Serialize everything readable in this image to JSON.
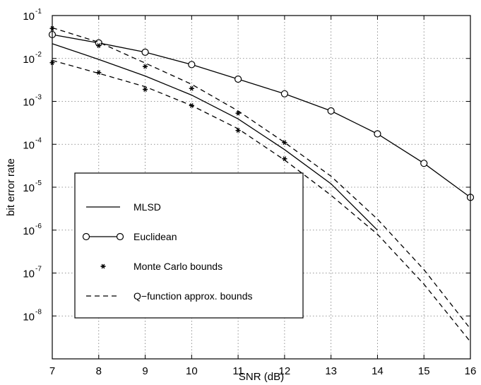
{
  "chart_data": {
    "type": "line",
    "xlabel": "SNR (dB)",
    "ylabel": "bit error rate",
    "x_scale": "linear",
    "y_scale": "log",
    "xlim": [
      7,
      16
    ],
    "ylim": [
      1e-09,
      0.1
    ],
    "x_ticks": [
      "7",
      "8",
      "9",
      "10",
      "11",
      "12",
      "13",
      "14",
      "15",
      "16"
    ],
    "y_ticks": [
      {
        "base": "10",
        "exp": "-1",
        "value": 0.1
      },
      {
        "base": "10",
        "exp": "-2",
        "value": 0.01
      },
      {
        "base": "10",
        "exp": "-3",
        "value": 0.001
      },
      {
        "base": "10",
        "exp": "-4",
        "value": 0.0001
      },
      {
        "base": "10",
        "exp": "-5",
        "value": 1e-05
      },
      {
        "base": "10",
        "exp": "-6",
        "value": 1e-06
      },
      {
        "base": "10",
        "exp": "-7",
        "value": 1e-07
      },
      {
        "base": "10",
        "exp": "-8",
        "value": 1e-08
      }
    ],
    "grid": true,
    "legend_position": "bottom-left",
    "series": [
      {
        "name": "MLSD",
        "style": "solid",
        "marker": "none",
        "x": [
          7,
          8,
          9,
          10,
          11,
          12,
          13,
          14
        ],
        "y": [
          0.022,
          0.0095,
          0.0039,
          0.0014,
          0.00039,
          7.5e-05,
          1.2e-05,
          1e-06
        ]
      },
      {
        "name": "Euclidean",
        "style": "solid",
        "marker": "circle",
        "x": [
          7,
          8,
          9,
          10,
          11,
          12,
          13,
          14,
          15,
          16
        ],
        "y": [
          0.036,
          0.023,
          0.014,
          0.0072,
          0.0033,
          0.0015,
          0.0006,
          0.000175,
          3.6e-05,
          5.8e-06
        ]
      },
      {
        "name": "Monte Carlo bounds",
        "style": "none",
        "marker": "asterisk",
        "x": [
          7,
          8,
          9,
          10,
          11,
          12,
          7,
          8,
          9,
          10,
          11,
          12
        ],
        "y": [
          0.05,
          0.02,
          0.0065,
          0.002,
          0.00053,
          0.00011,
          0.008,
          0.0047,
          0.0019,
          0.0008,
          0.00021,
          4.6e-05
        ]
      },
      {
        "name": "Q−function approx. bounds",
        "style": "dashed",
        "marker": "none",
        "x": [
          7,
          8,
          9,
          10,
          11,
          12,
          13,
          14,
          15,
          16
        ],
        "y": [
          0.052,
          0.024,
          0.0078,
          0.0025,
          0.0006,
          0.00011,
          1.8e-05,
          1.8e-06,
          1.2e-07,
          5e-09
        ]
      },
      {
        "name": "",
        "style": "dashed",
        "marker": "none",
        "x": [
          7,
          8,
          9,
          10,
          11,
          12,
          13,
          14,
          15,
          16
        ],
        "y": [
          0.009,
          0.0045,
          0.0022,
          0.0008,
          0.00023,
          4.3e-05,
          6.5e-06,
          8e-07,
          5.5e-08,
          2.5e-09
        ]
      }
    ],
    "legend": [
      {
        "label": "MLSD",
        "style": "solid",
        "marker": "none"
      },
      {
        "label": "Euclidean",
        "style": "solid",
        "marker": "circle"
      },
      {
        "label": "Monte Carlo bounds",
        "style": "none",
        "marker": "asterisk"
      },
      {
        "label": "Q−function approx. bounds",
        "style": "dashed",
        "marker": "none"
      }
    ]
  }
}
